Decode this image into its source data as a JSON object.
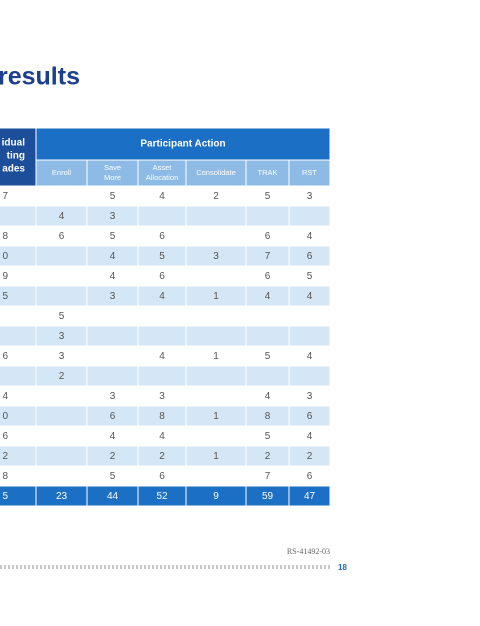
{
  "title": "results",
  "table": {
    "first_header": [
      "idual",
      "ting",
      "ades"
    ],
    "group_header": "Participant Action",
    "columns": [
      "Enroll",
      [
        "Save",
        "More"
      ],
      [
        "Asset",
        "Allocation"
      ],
      "Consolidate",
      "TRAK",
      "RST"
    ],
    "rows": [
      [
        "7",
        null,
        "5",
        "4",
        "2",
        "5",
        "3"
      ],
      [
        null,
        "4",
        "3",
        null,
        null,
        null,
        null
      ],
      [
        "8",
        "6",
        "5",
        "6",
        null,
        "6",
        "4"
      ],
      [
        "0",
        null,
        "4",
        "5",
        "3",
        "7",
        "6"
      ],
      [
        "9",
        null,
        "4",
        "6",
        null,
        "6",
        "5"
      ],
      [
        "5",
        null,
        "3",
        "4",
        "1",
        "4",
        "4"
      ],
      [
        null,
        "5",
        null,
        null,
        null,
        null,
        null
      ],
      [
        null,
        "3",
        null,
        null,
        null,
        null,
        null
      ],
      [
        "6",
        "3",
        null,
        "4",
        "1",
        "5",
        "4"
      ],
      [
        null,
        "2",
        null,
        null,
        null,
        null,
        null
      ],
      [
        "4",
        null,
        "3",
        "3",
        null,
        "4",
        "3"
      ],
      [
        "0",
        null,
        "6",
        "8",
        "1",
        "8",
        "6"
      ],
      [
        "6",
        null,
        "4",
        "4",
        null,
        "5",
        "4"
      ],
      [
        "2",
        null,
        "2",
        "2",
        "1",
        "2",
        "2"
      ],
      [
        "8",
        null,
        "5",
        "6",
        null,
        "7",
        "6"
      ]
    ],
    "total": [
      "5",
      "23",
      "44",
      "52",
      "9",
      "59",
      "47"
    ]
  },
  "footer": {
    "code": "RS-41492-03",
    "page": "18"
  }
}
